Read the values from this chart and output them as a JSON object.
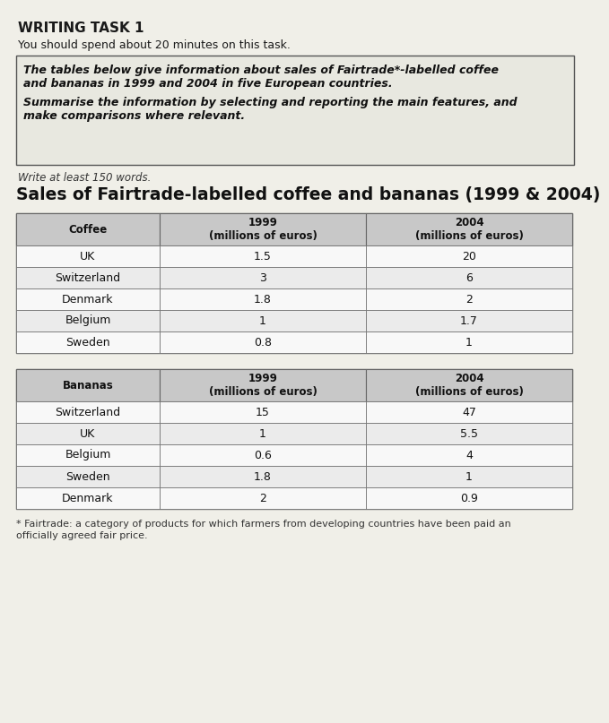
{
  "title_main": "WRITING TASK 1",
  "subtitle": "You should spend about 20 minutes on this task.",
  "box_lines": [
    "The tables below give information about sales of Fairtrade*-labelled coffee",
    "and bananas in 1999 and 2004 in five European countries.",
    "",
    "Summarise the information by selecting and reporting the main features, and",
    "make comparisons where relevant."
  ],
  "write_note": "Write at least 150 words.",
  "chart_title": "Sales of Fairtrade-labelled coffee and bananas (1999 & 2004)",
  "coffee_header": [
    "Coffee",
    "1999\n(millions of euros)",
    "2004\n(millions of euros)"
  ],
  "coffee_rows": [
    [
      "UK",
      "1.5",
      "20"
    ],
    [
      "Switzerland",
      "3",
      "6"
    ],
    [
      "Denmark",
      "1.8",
      "2"
    ],
    [
      "Belgium",
      "1",
      "1.7"
    ],
    [
      "Sweden",
      "0.8",
      "1"
    ]
  ],
  "bananas_header": [
    "Bananas",
    "1999\n(millions of euros)",
    "2004\n(millions of euros)"
  ],
  "bananas_rows": [
    [
      "Switzerland",
      "15",
      "47"
    ],
    [
      "UK",
      "1",
      "5.5"
    ],
    [
      "Belgium",
      "0.6",
      "4"
    ],
    [
      "Sweden",
      "1.8",
      "1"
    ],
    [
      "Denmark",
      "2",
      "0.9"
    ]
  ],
  "footnote1": "* Fairtrade: a category of products for which farmers from developing countries have been paid an",
  "footnote2": "officially agreed fair price.",
  "bg_color": "#f0efe8",
  "table_header_bg": "#c8c8c8",
  "table_border_color": "#666666",
  "table_row_bg1": "#f8f8f8",
  "table_row_bg2": "#ebebeb",
  "box_bg": "#e8e8e0"
}
